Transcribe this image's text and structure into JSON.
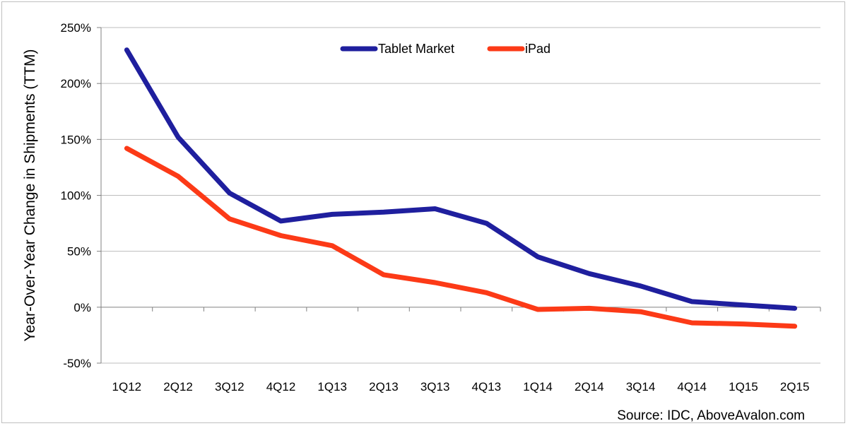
{
  "chart_data": {
    "type": "line",
    "title": "",
    "xlabel": "",
    "ylabel": "Year-Over-Year Change in Shipments (TTM)",
    "ylim": [
      -50,
      250
    ],
    "yticks": [
      -50,
      0,
      50,
      100,
      150,
      200,
      250
    ],
    "ytick_format": "percent",
    "grid": "horizontal",
    "legend_position": "top-center",
    "categories": [
      "1Q12",
      "2Q12",
      "3Q12",
      "4Q12",
      "1Q13",
      "2Q13",
      "3Q13",
      "4Q13",
      "1Q14",
      "2Q14",
      "3Q14",
      "4Q14",
      "1Q15",
      "2Q15"
    ],
    "series": [
      {
        "name": "Tablet Market",
        "color": "#1f1f9e",
        "values": [
          230,
          152,
          102,
          77,
          83,
          85,
          88,
          75,
          45,
          30,
          19,
          5,
          2,
          -1
        ]
      },
      {
        "name": "iPad",
        "color": "#fc3a17",
        "values": [
          142,
          117,
          79,
          64,
          55,
          29,
          22,
          13,
          -2,
          -1,
          -4,
          -14,
          -15,
          -17
        ]
      }
    ],
    "annotation": "Source: IDC, AboveAvalon.com"
  }
}
